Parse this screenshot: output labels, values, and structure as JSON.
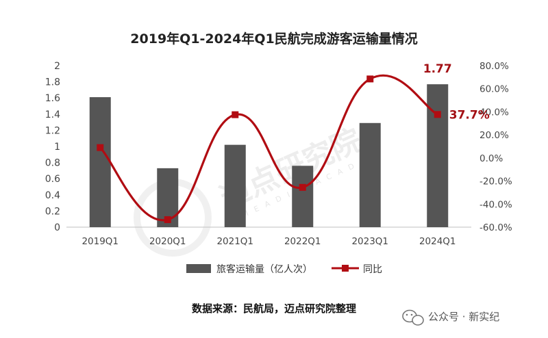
{
  "title": "2019年Q1-2024年Q1民航完成游客运输量情况",
  "source": "数据来源：民航局，迈点研究院整理",
  "wechat": {
    "label": "公众号 · 新实纪",
    "icon": "wechat-icon"
  },
  "watermark": {
    "text": "迈点研究院",
    "subtext": "MEADIN ACADEM"
  },
  "colors": {
    "bar": "#555555",
    "line": "#b10c12",
    "annotation": "#a30f14",
    "axis": "#bfbfbf"
  },
  "chart_data": {
    "type": "bar+line",
    "categories": [
      "2019Q1",
      "2020Q1",
      "2021Q1",
      "2022Q1",
      "2023Q1",
      "2024Q1"
    ],
    "series": [
      {
        "name": "旅客运输量（亿人次）",
        "type": "bar",
        "axis": "left",
        "values": [
          1.61,
          0.73,
          1.02,
          0.76,
          1.29,
          1.77
        ]
      },
      {
        "name": "同比",
        "type": "line",
        "axis": "right",
        "values": [
          9.0,
          -53.5,
          37.5,
          -25.5,
          68.5,
          37.7
        ]
      }
    ],
    "annotations": {
      "bar_last": "1.77",
      "line_last": "37.7%"
    },
    "y_left": {
      "min": 0,
      "max": 2,
      "ticks": [
        "0",
        "0.2",
        "0.4",
        "0.6",
        "0.8",
        "1",
        "1.2",
        "1.4",
        "1.6",
        "1.8",
        "2"
      ]
    },
    "y_right": {
      "min": -60,
      "max": 80,
      "ticks": [
        "-60.0%",
        "-40.0%",
        "-20.0%",
        "0.0%",
        "20.0%",
        "40.0%",
        "60.0%",
        "80.0%"
      ]
    },
    "legend_position": "bottom",
    "grid": false
  }
}
